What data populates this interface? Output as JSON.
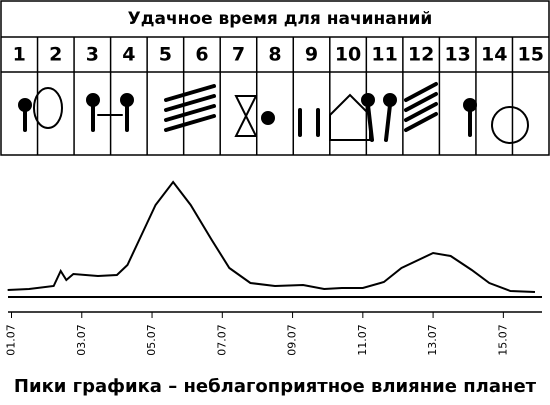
{
  "table": {
    "title": "Удачное время для начинаний",
    "columns": [
      "1",
      "2",
      "3",
      "4",
      "5",
      "6",
      "7",
      "8",
      "9",
      "10",
      "11",
      "12",
      "13",
      "14",
      "15"
    ]
  },
  "chart_data": {
    "type": "line",
    "caption": "Пики графика – неблагоприятное влияние планет",
    "x": [
      0.89,
      1.5,
      2.2,
      2.4,
      2.56,
      2.76,
      3.46,
      4.0,
      4.3,
      4.7,
      5.1,
      5.6,
      6.1,
      6.7,
      7.2,
      7.8,
      8.5,
      9.3,
      9.9,
      10.4,
      11.0,
      11.6,
      12.1,
      13.0,
      13.5,
      14.1,
      14.6,
      15.2,
      15.9
    ],
    "series": [
      {
        "color": "#000000",
        "values": [
          7,
          8,
          11,
          26,
          17,
          23,
          21,
          22,
          32,
          62,
          92,
          115,
          92,
          57,
          29,
          14,
          11,
          12,
          8,
          9,
          9,
          15,
          29,
          44,
          41,
          27,
          14,
          6,
          5
        ]
      }
    ],
    "xlim": [
      0.9,
      16.1
    ],
    "ylim": [
      0,
      120
    ],
    "xticks": [
      {
        "value": 1,
        "label": "01.07"
      },
      {
        "value": 3,
        "label": "03.07"
      },
      {
        "value": 5,
        "label": "05.07"
      },
      {
        "value": 7,
        "label": "07.07"
      },
      {
        "value": 9,
        "label": "09.07"
      },
      {
        "value": 11,
        "label": "11.07"
      },
      {
        "value": 13,
        "label": "13.07"
      },
      {
        "value": 15,
        "label": "15.07"
      }
    ]
  }
}
